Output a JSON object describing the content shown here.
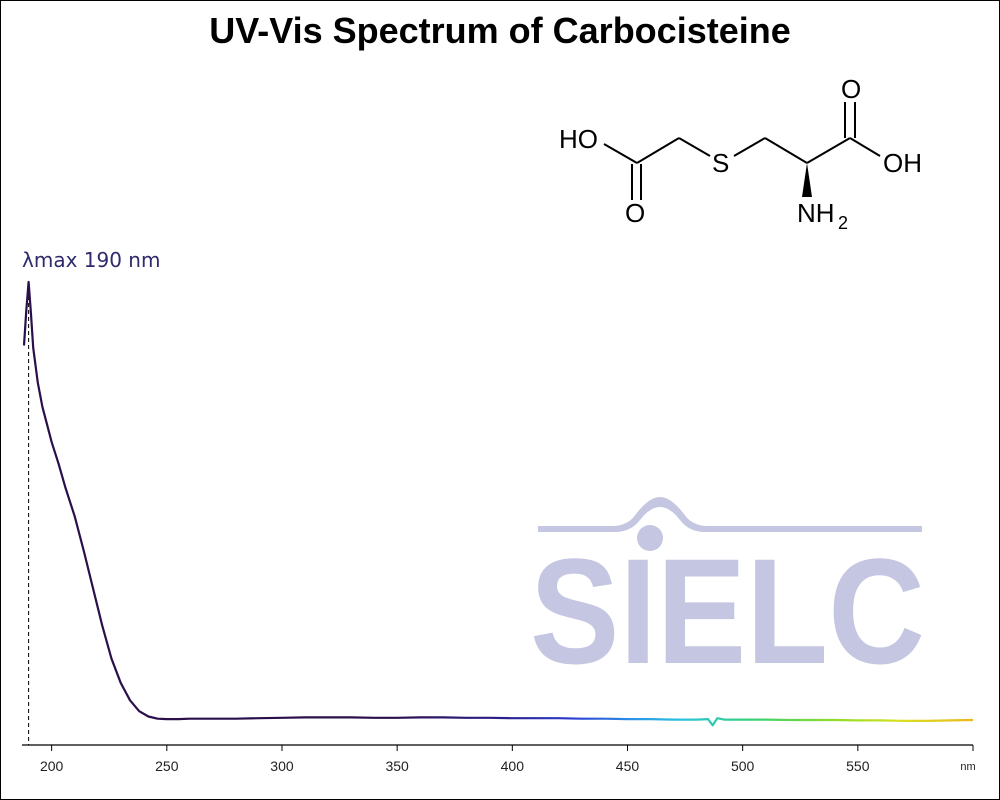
{
  "chart_data": {
    "type": "line",
    "title": "UV-Vis Spectrum of Carbocisteine",
    "xlabel": "nm",
    "ylabel": "",
    "xlim": [
      188,
      600
    ],
    "ylim": [
      0,
      1
    ],
    "x_ticks": [
      200,
      250,
      300,
      350,
      400,
      450,
      500,
      550,
      600
    ],
    "x_tick_labels": [
      "200",
      "250",
      "300",
      "350",
      "400",
      "450",
      "500",
      "550",
      ""
    ],
    "annotation": {
      "label": "λmax  190 nm",
      "x": 190
    },
    "grid": false,
    "legend": "none",
    "series": [
      {
        "x": [
          188,
          189,
          190,
          191,
          192,
          194,
          196,
          198,
          200,
          203,
          206,
          210,
          214,
          218,
          222,
          226,
          230,
          234,
          238,
          242,
          246,
          250,
          255,
          260,
          270,
          280,
          290,
          300,
          310,
          320,
          330,
          340,
          350,
          360,
          370,
          380,
          390,
          400,
          410,
          420,
          430,
          440,
          450,
          460,
          470,
          480,
          485,
          487,
          489,
          492,
          500,
          510,
          520,
          530,
          540,
          550,
          560,
          570,
          580,
          590,
          600
        ],
        "y": [
          0.855,
          0.935,
          1.0,
          0.93,
          0.85,
          0.77,
          0.715,
          0.675,
          0.635,
          0.585,
          0.53,
          0.465,
          0.385,
          0.3,
          0.215,
          0.14,
          0.085,
          0.045,
          0.02,
          0.008,
          0.003,
          0.002,
          0.002,
          0.003,
          0.003,
          0.003,
          0.004,
          0.005,
          0.006,
          0.006,
          0.006,
          0.005,
          0.005,
          0.006,
          0.006,
          0.005,
          0.005,
          0.004,
          0.004,
          0.004,
          0.003,
          0.003,
          0.002,
          0.002,
          0.001,
          0.001,
          0.002,
          -0.012,
          0.004,
          0.001,
          0.001,
          0.001,
          0.0,
          0.0,
          0.0,
          -0.001,
          -0.001,
          -0.002,
          -0.002,
          -0.001,
          0.0
        ]
      }
    ]
  },
  "watermark": {
    "text": "SIELC",
    "color": "#c5c6e2"
  },
  "molecule": {
    "atoms": {
      "ho_left": "HO",
      "o_bottom": "O",
      "s": "S",
      "o_top": "O",
      "oh_right": "OH",
      "nh": "NH",
      "nh_sub": "2"
    }
  },
  "colors": {
    "curve_uv": "#2a0f4a",
    "axis": "#000000",
    "lambda_text": "#2e2a6b"
  }
}
